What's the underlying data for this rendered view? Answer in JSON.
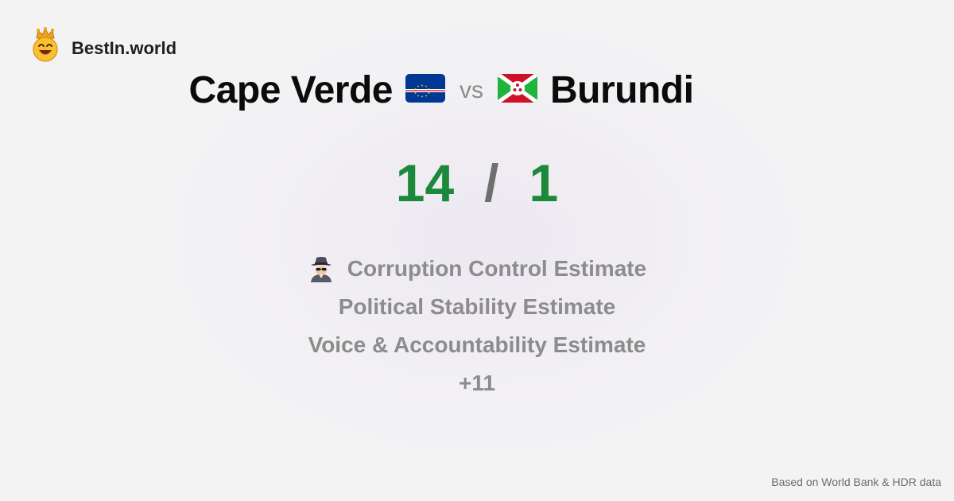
{
  "brand": {
    "name": "BestIn.world",
    "logo_icon": "crowned-smiley-icon"
  },
  "comparison": {
    "country_a": "Cape Verde",
    "flag_a": "cape-verde-flag-icon",
    "vs_label": "vs",
    "country_b": "Burundi",
    "flag_b": "burundi-flag-icon"
  },
  "score": {
    "a": "14",
    "separator": "/",
    "b": "1",
    "color": "#1a8a3a"
  },
  "metrics": [
    {
      "label": "Corruption Control Estimate",
      "icon": "detective-icon"
    },
    {
      "label": "Political Stability Estimate"
    },
    {
      "label": "Voice & Accountability Estimate"
    },
    {
      "label": "+11"
    }
  ],
  "footer": {
    "source": "Based on World Bank & HDR data"
  }
}
